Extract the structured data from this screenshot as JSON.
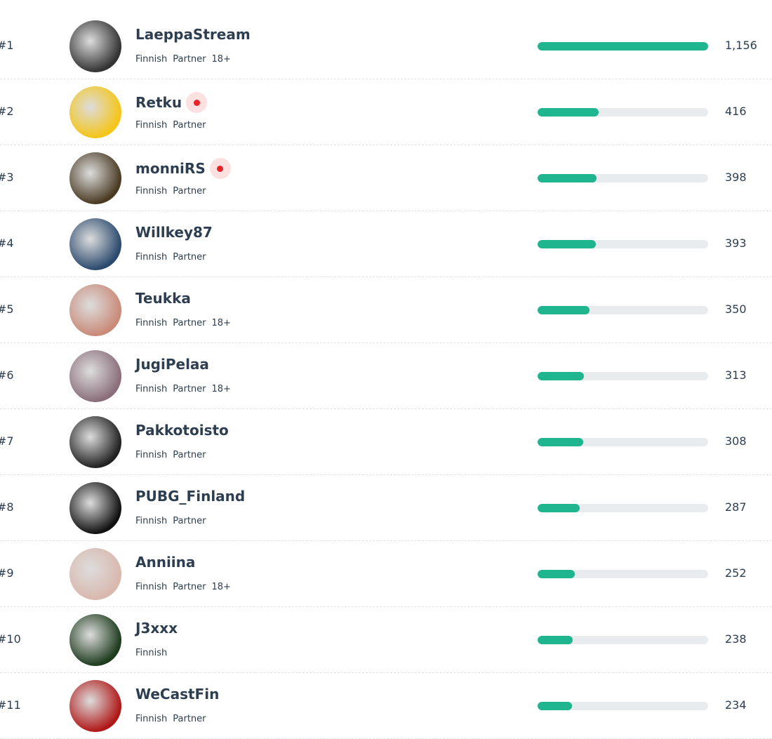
{
  "streamers": [
    {
      "rank": "#1",
      "name": "LaeppaStream",
      "tags": [
        "Finnish",
        "Partner",
        "18+"
      ],
      "live": false
    },
    {
      "rank": "#2",
      "name": "Retku",
      "tags": [
        "Finnish",
        "Partner"
      ],
      "live": true
    },
    {
      "rank": "#3",
      "name": "monniRS",
      "tags": [
        "Finnish",
        "Partner"
      ],
      "live": true
    },
    {
      "rank": "#4",
      "name": "Willkey87",
      "tags": [
        "Finnish",
        "Partner"
      ],
      "live": false
    },
    {
      "rank": "#5",
      "name": "Teukka",
      "tags": [
        "Finnish",
        "Partner",
        "18+"
      ],
      "live": false
    },
    {
      "rank": "#6",
      "name": "JugiPelaa",
      "tags": [
        "Finnish",
        "Partner",
        "18+"
      ],
      "live": false
    },
    {
      "rank": "#7",
      "name": "Pakkotoisto",
      "tags": [
        "Finnish",
        "Partner"
      ],
      "live": false
    },
    {
      "rank": "#8",
      "name": "PUBG_Finland",
      "tags": [
        "Finnish",
        "Partner"
      ],
      "live": false
    },
    {
      "rank": "#9",
      "name": "Anniina",
      "tags": [
        "Finnish",
        "Partner",
        "18+"
      ],
      "live": false
    },
    {
      "rank": "#10",
      "name": "J3xxx",
      "tags": [
        "Finnish"
      ],
      "live": false
    },
    {
      "rank": "#11",
      "name": "WeCastFin",
      "tags": [
        "Finnish",
        "Partner"
      ],
      "live": false
    }
  ],
  "values": [
    1156,
    416,
    398,
    393,
    350,
    313,
    308,
    287,
    252,
    238,
    234
  ],
  "value_labels": [
    "1,156",
    "416",
    "398",
    "393",
    "350",
    "313",
    "308",
    "287",
    "252",
    "238",
    "234"
  ],
  "bar_color": "#1fb58f"
}
